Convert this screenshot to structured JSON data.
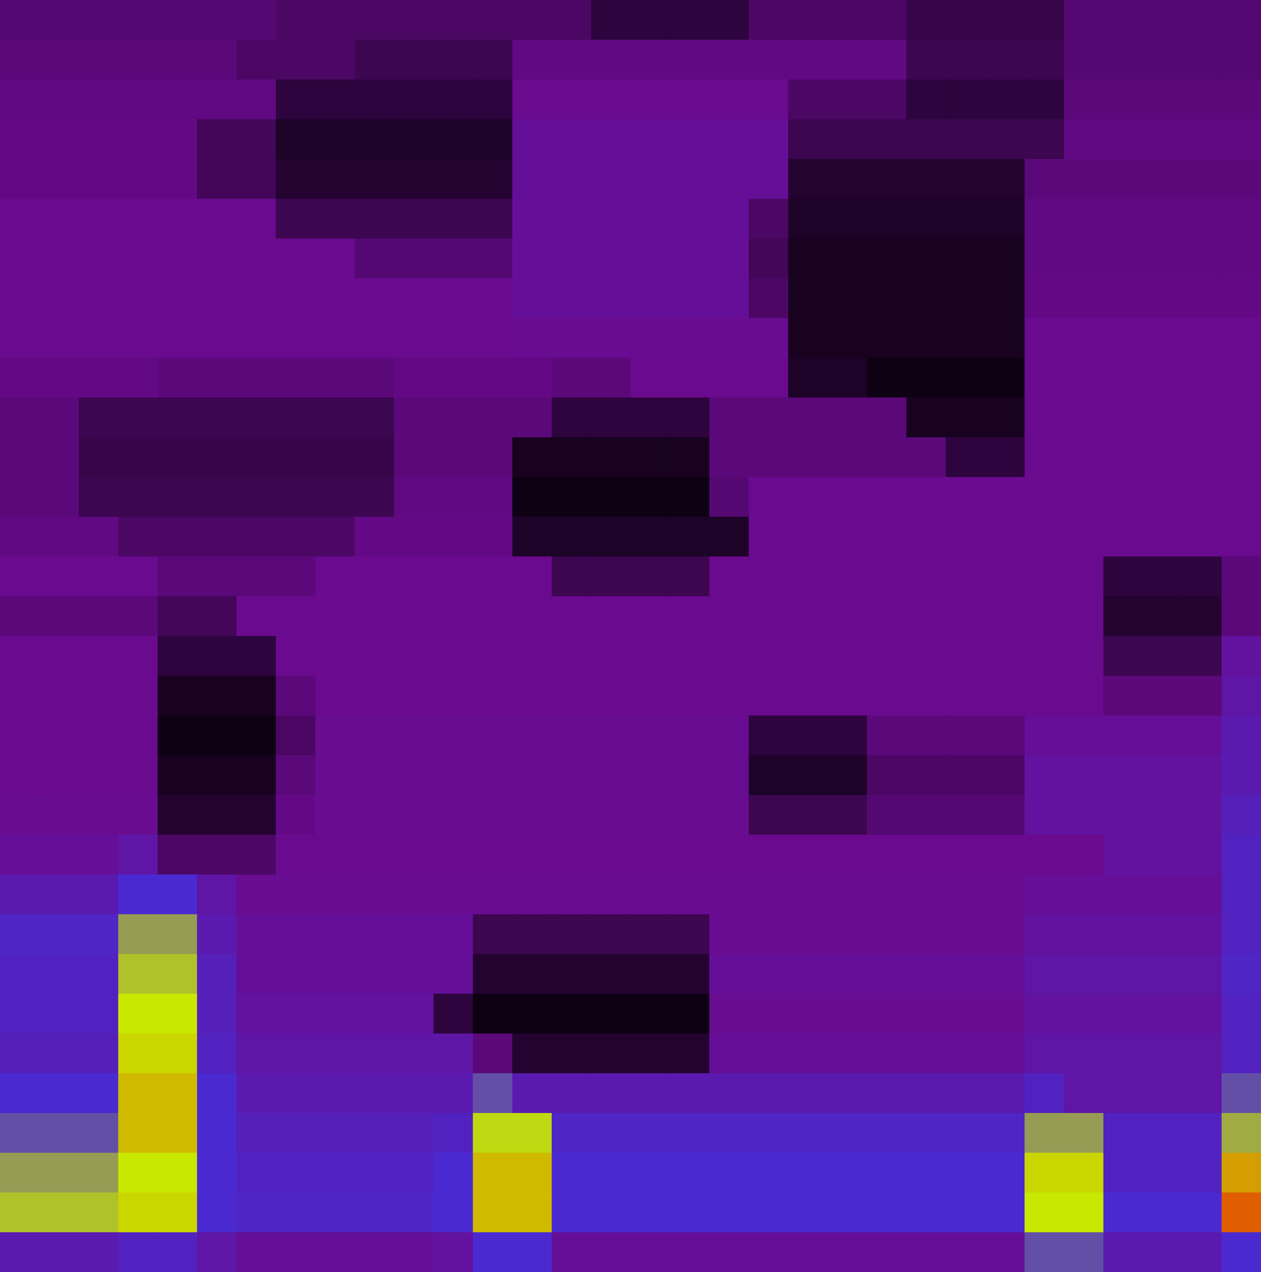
{
  "chart_data": {
    "type": "heatmap",
    "tick_labels": false,
    "zlim": [
      0,
      1
    ],
    "cells": [
      [
        0.28,
        0.28,
        0.28,
        0.28,
        0.28,
        0.28,
        0.28,
        0.25,
        0.25,
        0.25,
        0.25,
        0.25,
        0.25,
        0.25,
        0.25,
        0.15,
        0.15,
        0.15,
        0.15,
        0.25,
        0.25,
        0.25,
        0.25,
        0.18,
        0.18,
        0.18,
        0.18,
        0.28,
        0.28,
        0.28,
        0.28,
        0.28
      ],
      [
        0.3,
        0.3,
        0.3,
        0.3,
        0.3,
        0.3,
        0.25,
        0.25,
        0.25,
        0.2,
        0.2,
        0.2,
        0.2,
        0.32,
        0.32,
        0.32,
        0.32,
        0.32,
        0.32,
        0.32,
        0.32,
        0.32,
        0.32,
        0.2,
        0.2,
        0.2,
        0.2,
        0.28,
        0.28,
        0.28,
        0.28,
        0.28
      ],
      [
        0.32,
        0.32,
        0.32,
        0.32,
        0.32,
        0.32,
        0.32,
        0.15,
        0.15,
        0.15,
        0.15,
        0.15,
        0.15,
        0.35,
        0.35,
        0.35,
        0.35,
        0.35,
        0.35,
        0.35,
        0.25,
        0.25,
        0.25,
        0.15,
        0.15,
        0.15,
        0.15,
        0.3,
        0.3,
        0.3,
        0.3,
        0.3
      ],
      [
        0.33,
        0.33,
        0.33,
        0.33,
        0.33,
        0.22,
        0.22,
        0.1,
        0.1,
        0.1,
        0.1,
        0.1,
        0.1,
        0.38,
        0.38,
        0.38,
        0.38,
        0.38,
        0.38,
        0.38,
        0.2,
        0.2,
        0.2,
        0.2,
        0.2,
        0.2,
        0.2,
        0.32,
        0.32,
        0.32,
        0.32,
        0.32
      ],
      [
        0.33,
        0.33,
        0.33,
        0.33,
        0.33,
        0.22,
        0.22,
        0.12,
        0.12,
        0.12,
        0.12,
        0.12,
        0.12,
        0.38,
        0.38,
        0.38,
        0.38,
        0.38,
        0.38,
        0.38,
        0.12,
        0.12,
        0.12,
        0.12,
        0.12,
        0.12,
        0.3,
        0.3,
        0.3,
        0.3,
        0.3,
        0.3
      ],
      [
        0.35,
        0.35,
        0.35,
        0.35,
        0.35,
        0.35,
        0.35,
        0.2,
        0.2,
        0.2,
        0.2,
        0.2,
        0.2,
        0.38,
        0.38,
        0.38,
        0.38,
        0.38,
        0.38,
        0.25,
        0.1,
        0.1,
        0.1,
        0.1,
        0.1,
        0.1,
        0.32,
        0.32,
        0.32,
        0.32,
        0.32,
        0.32
      ],
      [
        0.35,
        0.35,
        0.35,
        0.35,
        0.35,
        0.35,
        0.35,
        0.35,
        0.35,
        0.28,
        0.28,
        0.28,
        0.28,
        0.38,
        0.38,
        0.38,
        0.38,
        0.38,
        0.38,
        0.22,
        0.08,
        0.08,
        0.08,
        0.08,
        0.08,
        0.08,
        0.32,
        0.32,
        0.32,
        0.32,
        0.32,
        0.32
      ],
      [
        0.35,
        0.35,
        0.35,
        0.35,
        0.35,
        0.35,
        0.35,
        0.35,
        0.35,
        0.35,
        0.35,
        0.35,
        0.35,
        0.38,
        0.38,
        0.38,
        0.38,
        0.38,
        0.38,
        0.25,
        0.08,
        0.08,
        0.08,
        0.08,
        0.08,
        0.08,
        0.33,
        0.33,
        0.33,
        0.33,
        0.33,
        0.33
      ],
      [
        0.35,
        0.35,
        0.35,
        0.35,
        0.35,
        0.35,
        0.35,
        0.35,
        0.35,
        0.35,
        0.35,
        0.35,
        0.35,
        0.36,
        0.36,
        0.36,
        0.36,
        0.36,
        0.36,
        0.36,
        0.08,
        0.08,
        0.08,
        0.08,
        0.08,
        0.08,
        0.35,
        0.35,
        0.35,
        0.35,
        0.35,
        0.35
      ],
      [
        0.33,
        0.33,
        0.33,
        0.33,
        0.3,
        0.3,
        0.3,
        0.3,
        0.3,
        0.3,
        0.33,
        0.33,
        0.33,
        0.33,
        0.3,
        0.3,
        0.35,
        0.35,
        0.35,
        0.35,
        0.1,
        0.1,
        0.05,
        0.05,
        0.05,
        0.05,
        0.35,
        0.35,
        0.35,
        0.35,
        0.35,
        0.35
      ],
      [
        0.3,
        0.3,
        0.2,
        0.2,
        0.2,
        0.2,
        0.2,
        0.2,
        0.2,
        0.2,
        0.3,
        0.3,
        0.3,
        0.3,
        0.15,
        0.15,
        0.15,
        0.15,
        0.3,
        0.3,
        0.3,
        0.3,
        0.3,
        0.08,
        0.08,
        0.08,
        0.35,
        0.35,
        0.35,
        0.35,
        0.35,
        0.35
      ],
      [
        0.3,
        0.3,
        0.18,
        0.18,
        0.18,
        0.18,
        0.18,
        0.18,
        0.18,
        0.18,
        0.3,
        0.3,
        0.3,
        0.08,
        0.08,
        0.08,
        0.08,
        0.08,
        0.3,
        0.3,
        0.3,
        0.3,
        0.3,
        0.3,
        0.15,
        0.15,
        0.35,
        0.35,
        0.35,
        0.35,
        0.35,
        0.35
      ],
      [
        0.3,
        0.3,
        0.2,
        0.2,
        0.2,
        0.2,
        0.2,
        0.2,
        0.2,
        0.2,
        0.32,
        0.32,
        0.32,
        0.05,
        0.05,
        0.05,
        0.05,
        0.05,
        0.28,
        0.35,
        0.35,
        0.35,
        0.35,
        0.35,
        0.35,
        0.35,
        0.35,
        0.35,
        0.35,
        0.35,
        0.35,
        0.35
      ],
      [
        0.32,
        0.32,
        0.32,
        0.25,
        0.25,
        0.25,
        0.25,
        0.25,
        0.25,
        0.33,
        0.33,
        0.33,
        0.33,
        0.1,
        0.1,
        0.1,
        0.1,
        0.1,
        0.1,
        0.35,
        0.35,
        0.35,
        0.35,
        0.35,
        0.35,
        0.35,
        0.35,
        0.35,
        0.35,
        0.35,
        0.35,
        0.35
      ],
      [
        0.35,
        0.35,
        0.35,
        0.35,
        0.3,
        0.3,
        0.3,
        0.3,
        0.35,
        0.35,
        0.35,
        0.35,
        0.35,
        0.35,
        0.2,
        0.2,
        0.2,
        0.2,
        0.35,
        0.35,
        0.35,
        0.35,
        0.35,
        0.35,
        0.35,
        0.35,
        0.35,
        0.35,
        0.15,
        0.15,
        0.15,
        0.3
      ],
      [
        0.3,
        0.3,
        0.3,
        0.3,
        0.22,
        0.22,
        0.35,
        0.35,
        0.35,
        0.35,
        0.35,
        0.35,
        0.35,
        0.35,
        0.35,
        0.35,
        0.35,
        0.35,
        0.35,
        0.35,
        0.35,
        0.35,
        0.35,
        0.35,
        0.35,
        0.35,
        0.35,
        0.35,
        0.12,
        0.12,
        0.12,
        0.3
      ],
      [
        0.35,
        0.35,
        0.35,
        0.35,
        0.15,
        0.15,
        0.15,
        0.35,
        0.35,
        0.35,
        0.35,
        0.35,
        0.35,
        0.35,
        0.35,
        0.35,
        0.35,
        0.35,
        0.35,
        0.35,
        0.35,
        0.35,
        0.35,
        0.35,
        0.35,
        0.35,
        0.35,
        0.35,
        0.2,
        0.2,
        0.2,
        0.4
      ],
      [
        0.35,
        0.35,
        0.35,
        0.35,
        0.08,
        0.08,
        0.08,
        0.3,
        0.35,
        0.35,
        0.35,
        0.35,
        0.35,
        0.35,
        0.35,
        0.35,
        0.35,
        0.35,
        0.35,
        0.35,
        0.35,
        0.35,
        0.35,
        0.35,
        0.35,
        0.35,
        0.35,
        0.35,
        0.3,
        0.3,
        0.3,
        0.42
      ],
      [
        0.35,
        0.35,
        0.35,
        0.35,
        0.05,
        0.05,
        0.05,
        0.25,
        0.36,
        0.36,
        0.36,
        0.36,
        0.36,
        0.36,
        0.36,
        0.36,
        0.36,
        0.36,
        0.36,
        0.15,
        0.15,
        0.15,
        0.3,
        0.3,
        0.3,
        0.3,
        0.38,
        0.38,
        0.38,
        0.38,
        0.38,
        0.45
      ],
      [
        0.35,
        0.35,
        0.35,
        0.35,
        0.08,
        0.08,
        0.08,
        0.3,
        0.36,
        0.36,
        0.36,
        0.36,
        0.36,
        0.36,
        0.36,
        0.36,
        0.36,
        0.36,
        0.36,
        0.1,
        0.1,
        0.1,
        0.25,
        0.25,
        0.25,
        0.25,
        0.4,
        0.4,
        0.4,
        0.4,
        0.4,
        0.45
      ],
      [
        0.36,
        0.36,
        0.36,
        0.36,
        0.12,
        0.12,
        0.12,
        0.33,
        0.36,
        0.36,
        0.36,
        0.36,
        0.36,
        0.36,
        0.36,
        0.36,
        0.36,
        0.36,
        0.36,
        0.2,
        0.2,
        0.2,
        0.28,
        0.28,
        0.28,
        0.28,
        0.4,
        0.4,
        0.4,
        0.4,
        0.4,
        0.48
      ],
      [
        0.38,
        0.38,
        0.38,
        0.42,
        0.25,
        0.25,
        0.25,
        0.35,
        0.35,
        0.35,
        0.35,
        0.35,
        0.35,
        0.35,
        0.35,
        0.35,
        0.35,
        0.35,
        0.35,
        0.35,
        0.35,
        0.35,
        0.35,
        0.35,
        0.35,
        0.35,
        0.35,
        0.35,
        0.4,
        0.4,
        0.4,
        0.5
      ],
      [
        0.45,
        0.45,
        0.45,
        0.55,
        0.55,
        0.42,
        0.36,
        0.36,
        0.36,
        0.36,
        0.36,
        0.36,
        0.36,
        0.36,
        0.36,
        0.36,
        0.36,
        0.36,
        0.36,
        0.36,
        0.36,
        0.36,
        0.36,
        0.36,
        0.36,
        0.36,
        0.38,
        0.38,
        0.38,
        0.38,
        0.38,
        0.5
      ],
      [
        0.52,
        0.52,
        0.52,
        0.7,
        0.7,
        0.45,
        0.38,
        0.38,
        0.38,
        0.38,
        0.38,
        0.38,
        0.2,
        0.2,
        0.2,
        0.2,
        0.2,
        0.2,
        0.36,
        0.36,
        0.36,
        0.36,
        0.36,
        0.36,
        0.36,
        0.36,
        0.4,
        0.4,
        0.4,
        0.4,
        0.4,
        0.5
      ],
      [
        0.5,
        0.5,
        0.5,
        0.75,
        0.75,
        0.48,
        0.38,
        0.38,
        0.38,
        0.38,
        0.38,
        0.38,
        0.12,
        0.12,
        0.12,
        0.12,
        0.12,
        0.12,
        0.38,
        0.38,
        0.38,
        0.38,
        0.38,
        0.38,
        0.38,
        0.38,
        0.42,
        0.42,
        0.42,
        0.42,
        0.42,
        0.52
      ],
      [
        0.5,
        0.5,
        0.5,
        0.8,
        0.8,
        0.48,
        0.4,
        0.4,
        0.4,
        0.4,
        0.4,
        0.15,
        0.05,
        0.05,
        0.05,
        0.05,
        0.05,
        0.05,
        0.36,
        0.36,
        0.36,
        0.36,
        0.36,
        0.36,
        0.36,
        0.36,
        0.4,
        0.4,
        0.4,
        0.4,
        0.4,
        0.5
      ],
      [
        0.48,
        0.48,
        0.48,
        0.82,
        0.82,
        0.5,
        0.42,
        0.42,
        0.42,
        0.42,
        0.42,
        0.42,
        0.3,
        0.12,
        0.12,
        0.12,
        0.12,
        0.12,
        0.38,
        0.38,
        0.38,
        0.38,
        0.38,
        0.38,
        0.38,
        0.38,
        0.42,
        0.42,
        0.42,
        0.42,
        0.42,
        0.5
      ],
      [
        0.55,
        0.55,
        0.55,
        0.85,
        0.85,
        0.55,
        0.45,
        0.45,
        0.45,
        0.45,
        0.45,
        0.45,
        0.6,
        0.45,
        0.45,
        0.45,
        0.45,
        0.45,
        0.45,
        0.45,
        0.45,
        0.45,
        0.45,
        0.45,
        0.45,
        0.45,
        0.5,
        0.42,
        0.42,
        0.42,
        0.42,
        0.6
      ],
      [
        0.6,
        0.6,
        0.6,
        0.85,
        0.85,
        0.55,
        0.48,
        0.48,
        0.48,
        0.48,
        0.48,
        0.5,
        0.78,
        0.78,
        0.52,
        0.52,
        0.52,
        0.52,
        0.52,
        0.52,
        0.52,
        0.52,
        0.52,
        0.52,
        0.52,
        0.52,
        0.7,
        0.7,
        0.5,
        0.5,
        0.5,
        0.72
      ],
      [
        0.7,
        0.7,
        0.7,
        0.8,
        0.8,
        0.55,
        0.5,
        0.5,
        0.5,
        0.5,
        0.5,
        0.55,
        0.85,
        0.85,
        0.55,
        0.55,
        0.55,
        0.55,
        0.55,
        0.55,
        0.55,
        0.55,
        0.55,
        0.55,
        0.55,
        0.55,
        0.82,
        0.82,
        0.5,
        0.5,
        0.5,
        0.88
      ],
      [
        0.75,
        0.75,
        0.75,
        0.82,
        0.82,
        0.55,
        0.52,
        0.52,
        0.52,
        0.52,
        0.52,
        0.55,
        0.85,
        0.85,
        0.55,
        0.55,
        0.55,
        0.55,
        0.55,
        0.55,
        0.55,
        0.55,
        0.55,
        0.55,
        0.55,
        0.55,
        0.8,
        0.8,
        0.55,
        0.55,
        0.55,
        0.95
      ],
      [
        0.45,
        0.45,
        0.45,
        0.5,
        0.5,
        0.42,
        0.38,
        0.38,
        0.38,
        0.38,
        0.38,
        0.4,
        0.55,
        0.55,
        0.38,
        0.38,
        0.38,
        0.38,
        0.38,
        0.38,
        0.38,
        0.38,
        0.38,
        0.38,
        0.38,
        0.38,
        0.6,
        0.6,
        0.45,
        0.45,
        0.45,
        0.55
      ]
    ]
  }
}
